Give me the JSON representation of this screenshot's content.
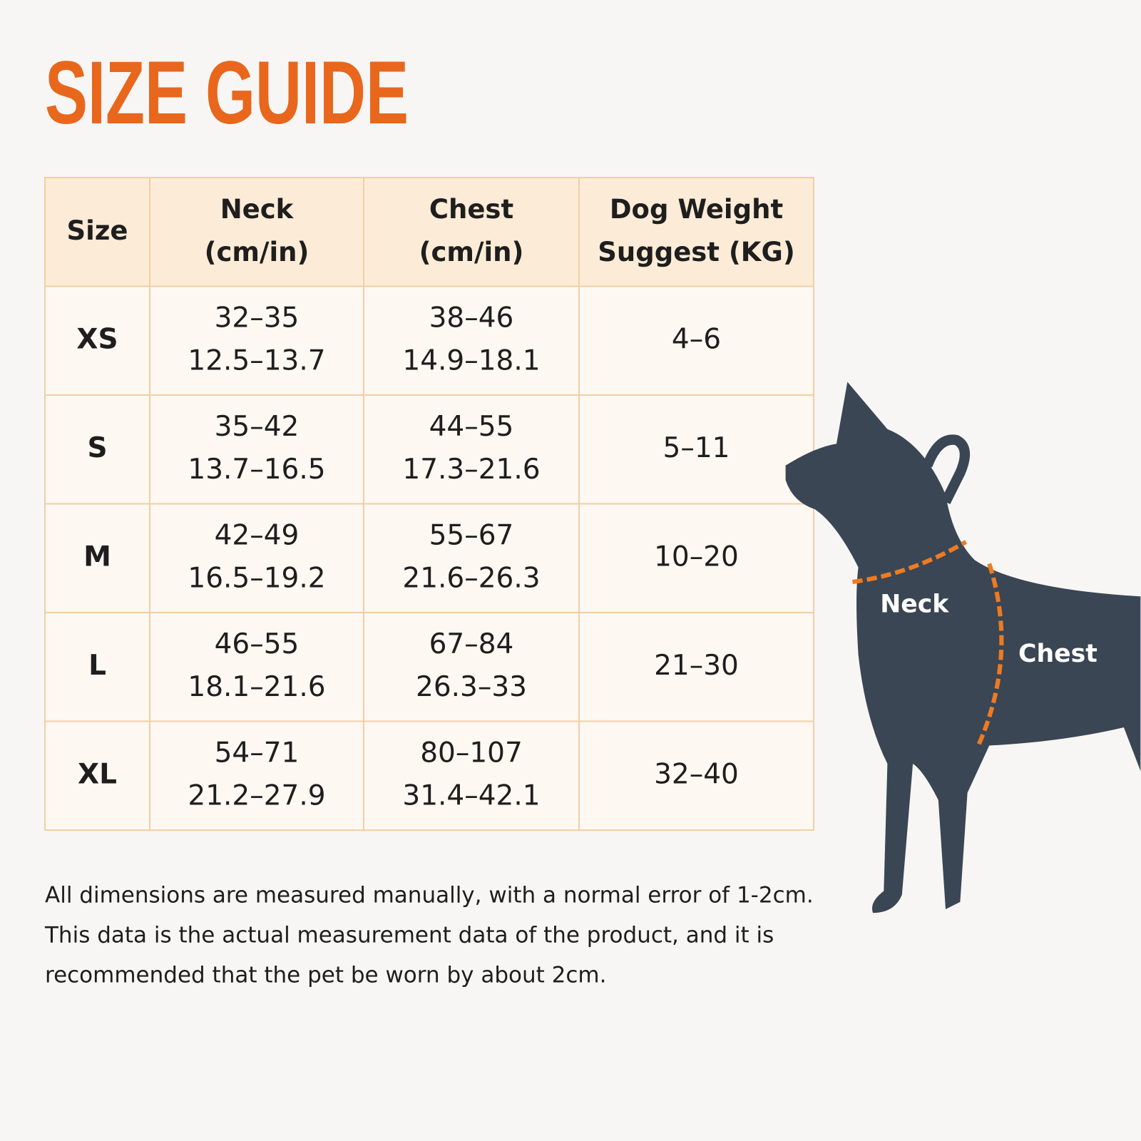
{
  "title": "SIZE GUIDE",
  "table": {
    "header": [
      [
        "Size"
      ],
      [
        "Neck",
        "(cm/in)"
      ],
      [
        "Chest",
        "(cm/in)"
      ],
      [
        "Dog Weight",
        "Suggest (KG)"
      ]
    ],
    "rows": [
      [
        [
          "XS"
        ],
        [
          "32–35",
          "12.5–13.7"
        ],
        [
          "38–46",
          "14.9–18.1"
        ],
        [
          "4–6"
        ]
      ],
      [
        [
          "S"
        ],
        [
          "35–42",
          "13.7–16.5"
        ],
        [
          "44–55",
          "17.3–21.6"
        ],
        [
          "5–11"
        ]
      ],
      [
        [
          "M"
        ],
        [
          "42–49",
          "16.5–19.2"
        ],
        [
          "55–67",
          "21.6–26.3"
        ],
        [
          "10–20"
        ]
      ],
      [
        [
          "L"
        ],
        [
          "46–55",
          "18.1–21.6"
        ],
        [
          "67–84",
          "26.3–33"
        ],
        [
          "21–30"
        ]
      ],
      [
        [
          "XL"
        ],
        [
          "54–71",
          "21.2–27.9"
        ],
        [
          "80–107",
          "31.4–42.1"
        ],
        [
          "32–40"
        ]
      ]
    ]
  },
  "note": [
    "All dimensions are measured manually, with a normal error of 1-2cm.",
    "This data is the actual measurement data of the product, and it is",
    "recommended that the pet be worn by about 2cm."
  ],
  "diagram": {
    "neck_label": "Neck",
    "chest_label": "Chest"
  }
}
